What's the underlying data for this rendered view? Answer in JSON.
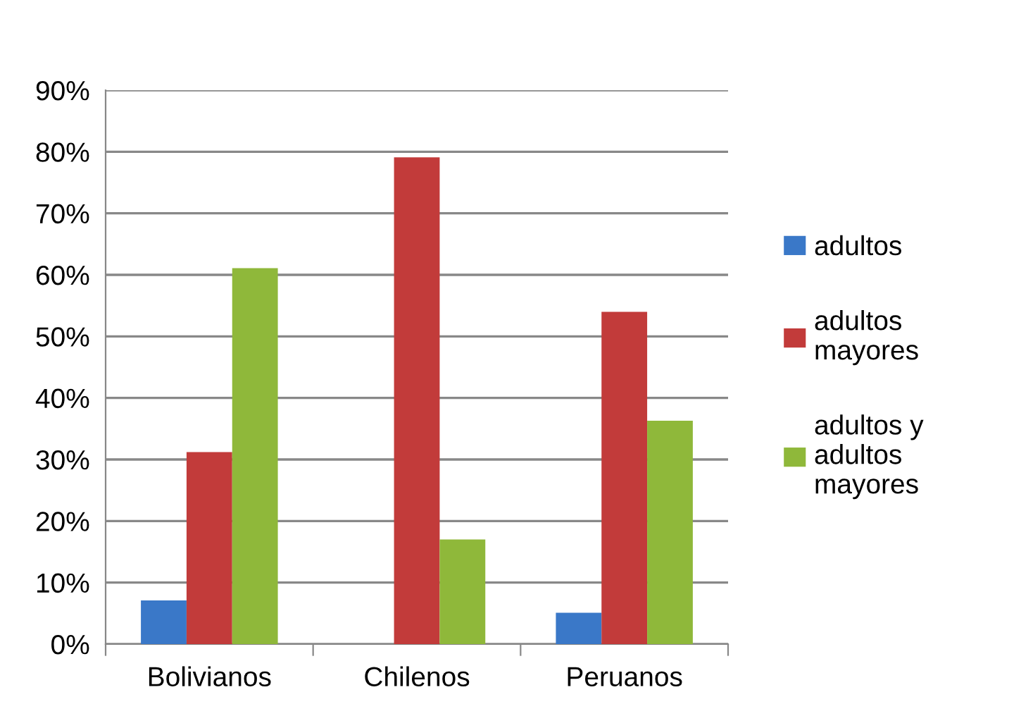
{
  "chart_data": {
    "type": "bar",
    "categories": [
      "Bolivianos",
      "Chilenos",
      "Peruanos"
    ],
    "series": [
      {
        "name": "adultos",
        "color": "#3a78c8",
        "values": [
          7.1,
          0,
          5.1
        ]
      },
      {
        "name": "adultos mayores",
        "color": "#c23b3a",
        "values": [
          31.2,
          79.1,
          54
        ]
      },
      {
        "name": "adultos y adultos mayores",
        "color": "#8fb83a",
        "values": [
          61.1,
          17,
          36.3
        ]
      }
    ],
    "ylim": [
      0,
      90
    ],
    "yticks": [
      {
        "value": 0,
        "label": "0%"
      },
      {
        "value": 10,
        "label": "10%"
      },
      {
        "value": 20,
        "label": "20%"
      },
      {
        "value": 30,
        "label": "30%"
      },
      {
        "value": 40,
        "label": "40%"
      },
      {
        "value": 50,
        "label": "50%"
      },
      {
        "value": 60,
        "label": "60%"
      },
      {
        "value": 70,
        "label": "70%"
      },
      {
        "value": 80,
        "label": "80%"
      },
      {
        "value": 90,
        "label": "90%"
      }
    ],
    "grid": "y",
    "legend": "right"
  }
}
